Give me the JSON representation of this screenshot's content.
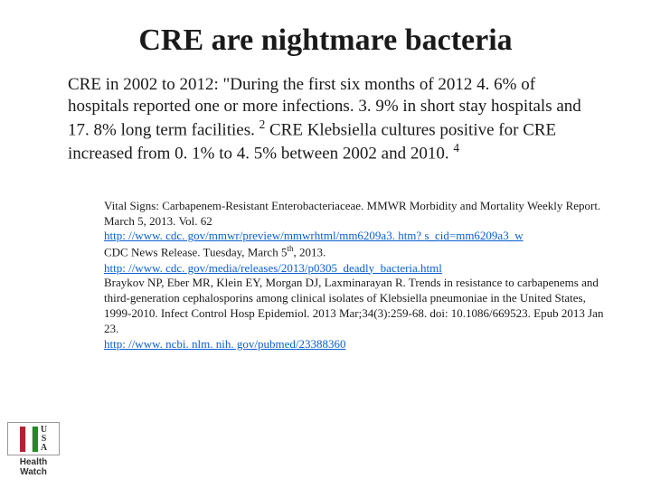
{
  "title": "CRE are nightmare bacteria",
  "body": {
    "part1": "CRE in 2002 to 2012:  \"During the first six months of 2012 4. 6% of hospitals reported one or more infections.   3. 9% in short stay hospitals and 17. 8% long term facilities. ",
    "sup1": "2",
    "part2": "   CRE Klebsiella cultures positive for CRE increased from 0. 1% to 4. 5% between 2002 and 2010. ",
    "sup2": "4"
  },
  "refs": {
    "r1": "Vital Signs: Carbapenem-Resistant Enterobacteriaceae.  MMWR Morbidity and Mortality Weekly Report.  March 5, 2013.  Vol. 62",
    "link1": "http: //www. cdc. gov/mmwr/preview/mmwrhtml/mm6209a3. htm? s_cid=mm6209a3_w",
    "r2a": "CDC News Release.  Tuesday, March 5",
    "r2th": "th",
    "r2b": ", 2013.",
    "link2": "http: //www. cdc. gov/media/releases/2013/p0305_deadly_bacteria.html",
    "r3": "Braykov NP, Eber MR, Klein EY, Morgan DJ, Laxminarayan R.  Trends in resistance to carbapenems and third-generation cephalosporins among clinical isolates of Klebsiella pneumoniae in the United States, 1999-2010.  Infect Control Hosp Epidemiol. 2013 Mar;34(3):259-68. doi: 10.1086/669523. Epub 2013 Jan 23.",
    "link3": "http: //www. ncbi. nlm. nih. gov/pubmed/23388360"
  },
  "logo": {
    "u": "U",
    "s": "S",
    "a": "A",
    "label": "Health Watch"
  }
}
